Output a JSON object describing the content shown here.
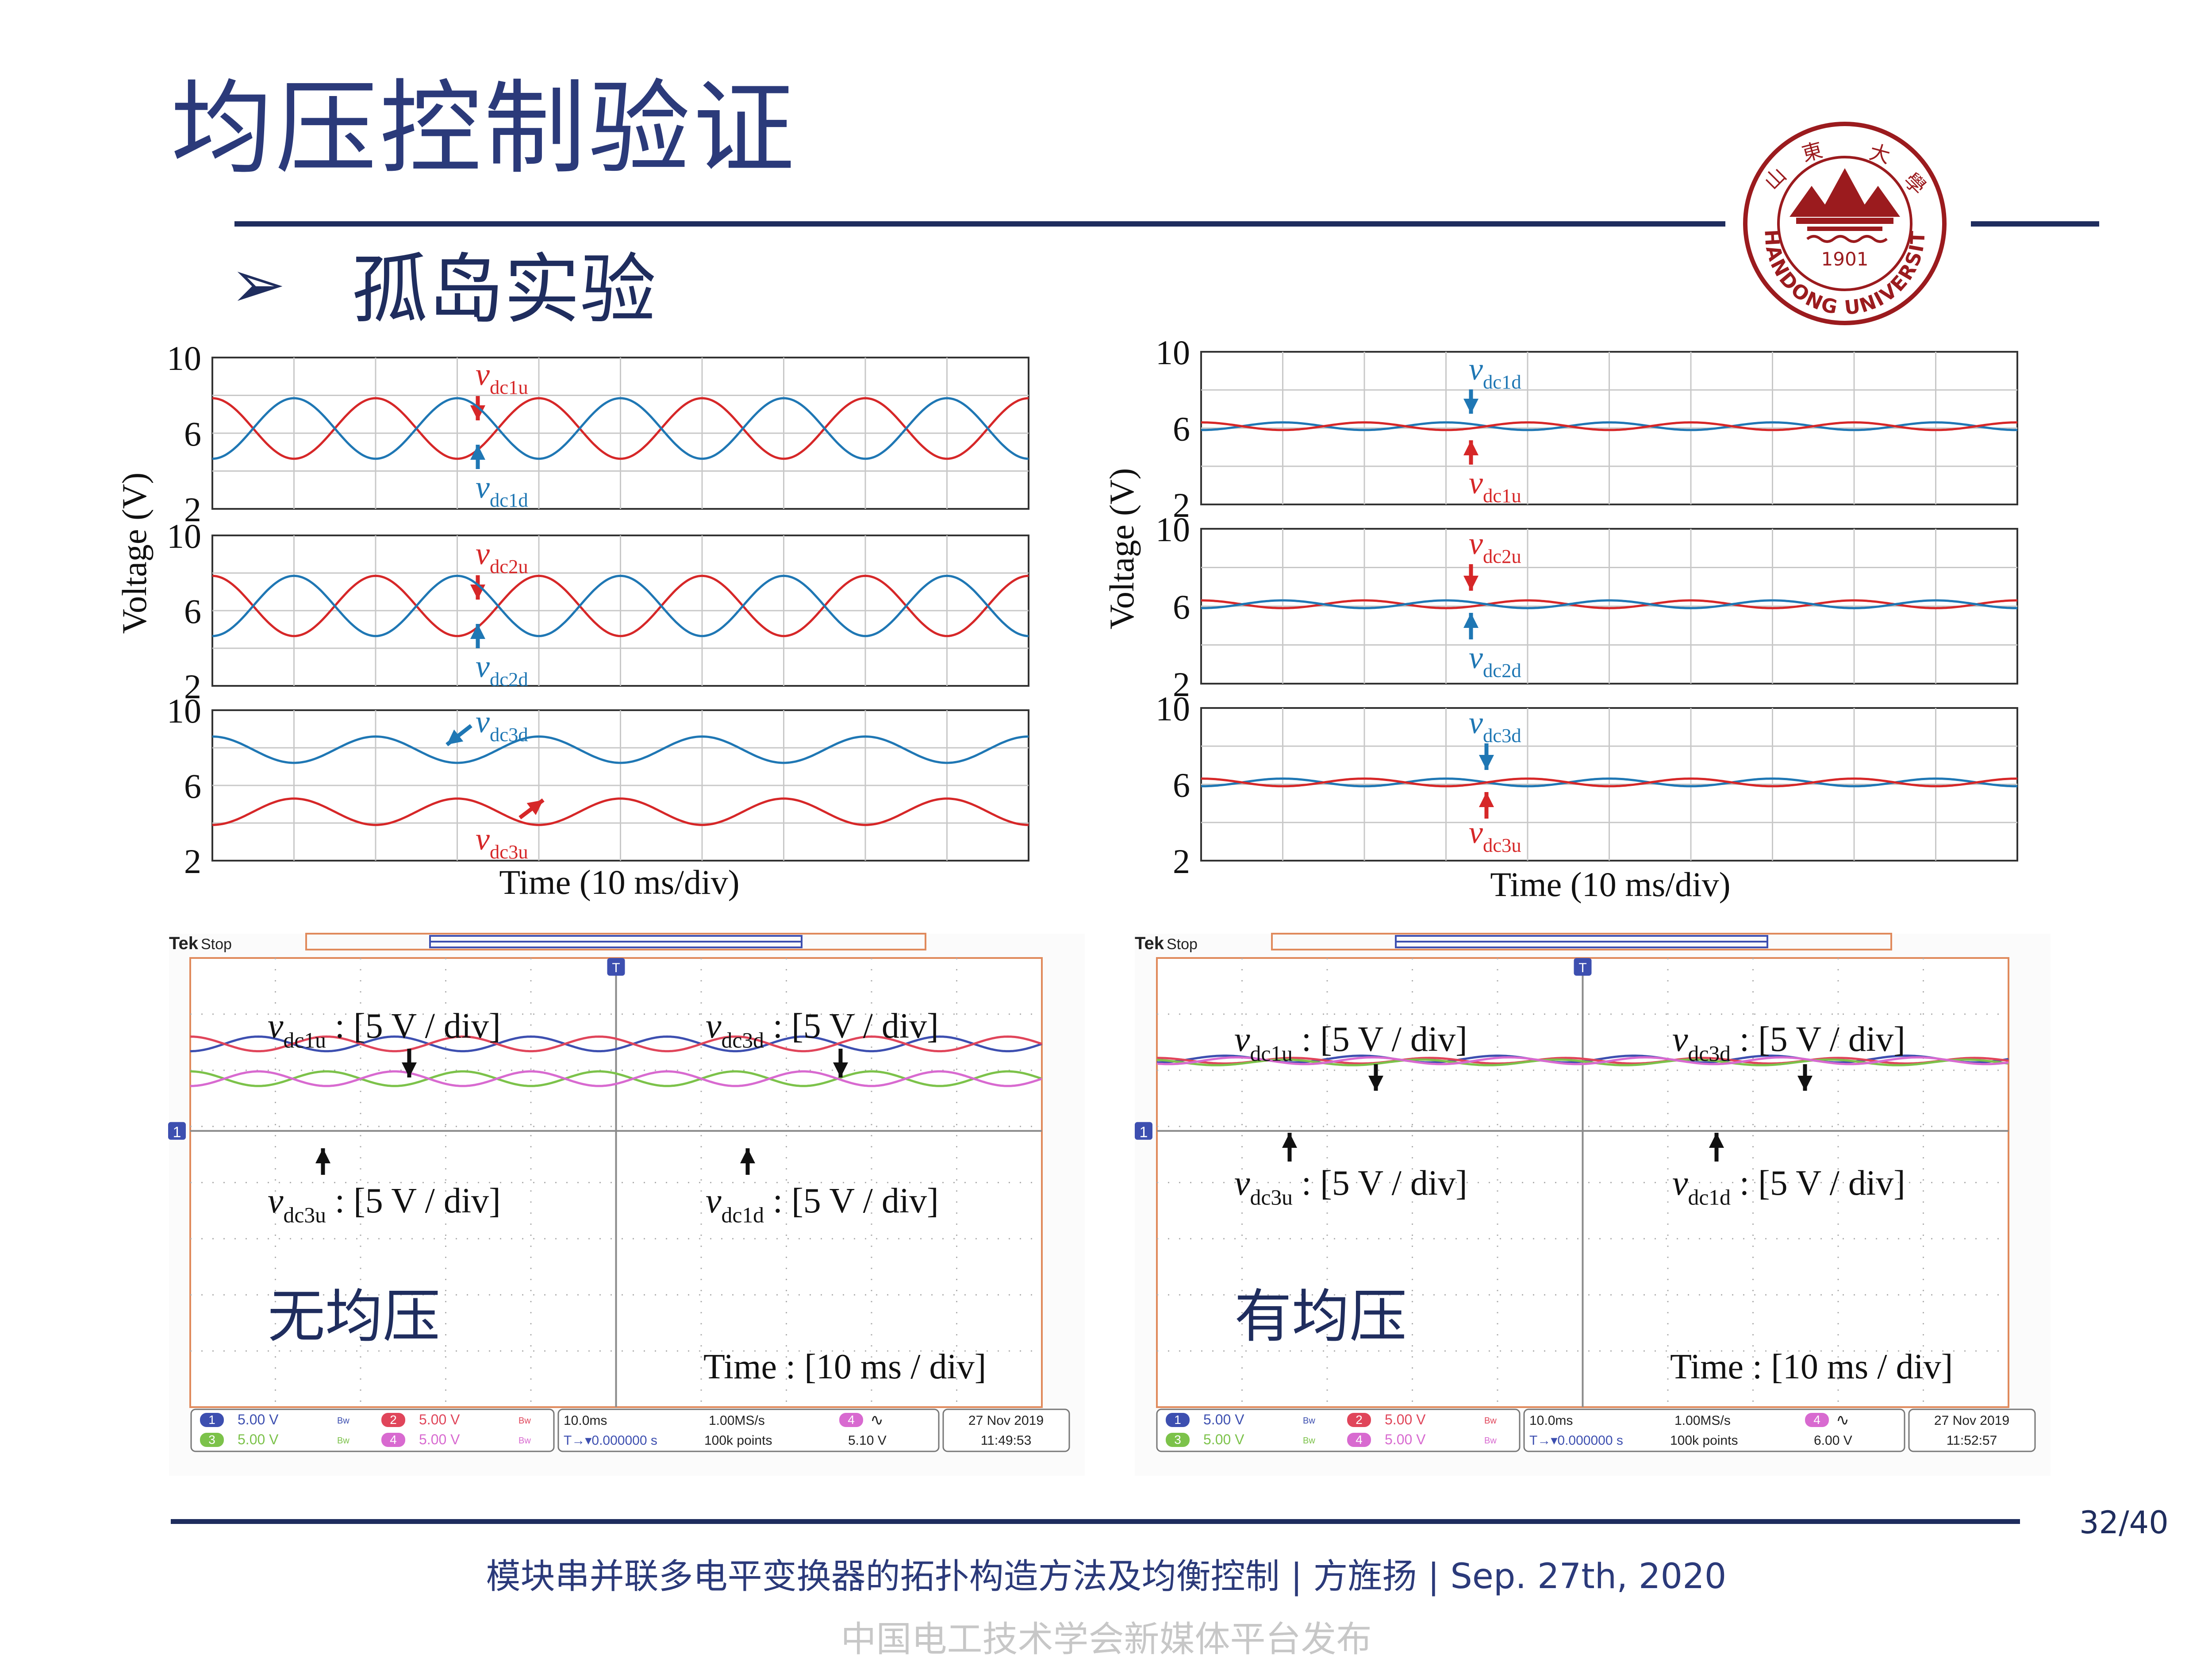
{
  "slide": {
    "title": "均压控制验证",
    "subtitle": "孤岛实验",
    "bullet": "➢",
    "page": "32/40",
    "footer": "模块串并联多电平变换器的拓扑构造方法及均衡控制 | 方旌扬 | Sep. 27th, 2020",
    "publish": "中国电工技术学会新媒体平台发布",
    "logo": {
      "year": "1901",
      "name": "SHANDONG UNIVERSITY",
      "calligraphy": "山东大学"
    },
    "colors": {
      "navy": "#1f2d5e",
      "red": "#d62728",
      "blue": "#1f77b4"
    }
  },
  "chart_data": [
    {
      "type": "line",
      "panel": "simulation-left",
      "ylabel": "Voltage (V)",
      "xlabel": "Time (10 ms/div)",
      "x_range_div": [
        0,
        10
      ],
      "rows": [
        {
          "ylim": [
            2,
            10
          ],
          "yticks": [
            "10",
            "6",
            "2"
          ],
          "series": [
            {
              "name": "vdc1u",
              "sym": "v",
              "sub": "dc1u",
              "color": "#d62728",
              "mean": 6.25,
              "amplitude": 1.6,
              "period_div": 2,
              "phase": 0
            },
            {
              "name": "vdc1d",
              "sym": "v",
              "sub": "dc1d",
              "color": "#1f77b4",
              "mean": 6.25,
              "amplitude": -1.6,
              "period_div": 2,
              "phase": 0
            }
          ]
        },
        {
          "ylim": [
            2,
            10
          ],
          "yticks": [
            "10",
            "6",
            "2"
          ],
          "series": [
            {
              "name": "vdc2u",
              "sym": "v",
              "sub": "dc2u",
              "color": "#d62728",
              "mean": 6.25,
              "amplitude": 1.6,
              "period_div": 2,
              "phase": 0
            },
            {
              "name": "vdc2d",
              "sym": "v",
              "sub": "dc2d",
              "color": "#1f77b4",
              "mean": 6.25,
              "amplitude": -1.6,
              "period_div": 2,
              "phase": 0
            }
          ]
        },
        {
          "ylim": [
            2,
            10
          ],
          "yticks": [
            "10",
            "6",
            "2"
          ],
          "series": [
            {
              "name": "vdc3d",
              "sym": "v",
              "sub": "dc3d",
              "color": "#1f77b4",
              "mean": 7.9,
              "amplitude": 0.7,
              "period_div": 2,
              "phase": 0
            },
            {
              "name": "vdc3u",
              "sym": "v",
              "sub": "dc3u",
              "color": "#d62728",
              "mean": 4.6,
              "amplitude": -0.7,
              "period_div": 2,
              "phase": 0
            }
          ]
        }
      ]
    },
    {
      "type": "line",
      "panel": "simulation-right",
      "ylabel": "Voltage (V)",
      "xlabel": "Time (10 ms/div)",
      "x_range_div": [
        0,
        10
      ],
      "rows": [
        {
          "ylim": [
            2,
            10
          ],
          "yticks": [
            "10",
            "6",
            "2"
          ],
          "series": [
            {
              "name": "vdc1d",
              "sym": "v",
              "sub": "dc1d",
              "color": "#1f77b4",
              "mean": 6.1,
              "amplitude": -0.2,
              "period_div": 2,
              "phase": 0
            },
            {
              "name": "vdc1u",
              "sym": "v",
              "sub": "dc1u",
              "color": "#d62728",
              "mean": 6.1,
              "amplitude": 0.2,
              "period_div": 2,
              "phase": 0
            }
          ]
        },
        {
          "ylim": [
            2,
            10
          ],
          "yticks": [
            "10",
            "6",
            "2"
          ],
          "series": [
            {
              "name": "vdc2u",
              "sym": "v",
              "sub": "dc2u",
              "color": "#d62728",
              "mean": 6.1,
              "amplitude": 0.2,
              "period_div": 2,
              "phase": 0
            },
            {
              "name": "vdc2d",
              "sym": "v",
              "sub": "dc2d",
              "color": "#1f77b4",
              "mean": 6.1,
              "amplitude": -0.2,
              "period_div": 2,
              "phase": 0
            }
          ]
        },
        {
          "ylim": [
            2,
            10
          ],
          "yticks": [
            "10",
            "6",
            "2"
          ],
          "series": [
            {
              "name": "vdc3d",
              "sym": "v",
              "sub": "dc3d",
              "color": "#1f77b4",
              "mean": 6.1,
              "amplitude": -0.2,
              "period_div": 2,
              "phase": 0
            },
            {
              "name": "vdc3u",
              "sym": "v",
              "sub": "dc3u",
              "color": "#d62728",
              "mean": 6.1,
              "amplitude": 0.2,
              "period_div": 2,
              "phase": 0
            }
          ]
        }
      ]
    },
    {
      "type": "line",
      "panel": "oscilloscope-left",
      "status": "Stop",
      "brand": "Tek",
      "caption": "无均压",
      "time_label": "Time : [10 ms / div]",
      "labels": [
        {
          "sym": "v",
          "sub": "dc1u",
          "text": " : [5 V / div]"
        },
        {
          "sym": "v",
          "sub": "dc3d",
          "text": " : [5 V / div]"
        },
        {
          "sym": "v",
          "sub": "dc3u",
          "text": " : [5 V / div]"
        },
        {
          "sym": "v",
          "sub": "dc1d",
          "text": " : [5 V / div]"
        }
      ],
      "traces": [
        {
          "ch": "1",
          "color": "#3d4fb0",
          "level_div": 1.55,
          "amplitude_div": 0.13,
          "period_div": 1.6,
          "phase": 3.14
        },
        {
          "ch": "2",
          "color": "#e0455a",
          "level_div": 1.55,
          "amplitude_div": 0.13,
          "period_div": 1.6,
          "phase": 0
        },
        {
          "ch": "3",
          "color": "#7cc24a",
          "level_div": 0.93,
          "amplitude_div": 0.13,
          "period_div": 1.6,
          "phase": 0
        },
        {
          "ch": "4",
          "color": "#d86ad0",
          "level_div": 0.93,
          "amplitude_div": 0.13,
          "period_div": 1.6,
          "phase": 3.14
        }
      ],
      "readouts": {
        "ch1": "5.00 V",
        "ch2": "5.00 V",
        "ch3": "5.00 V",
        "ch4": "5.00 V",
        "timebase": "10.0ms",
        "delay": "0.000000 s",
        "rate": "1.00MS/s",
        "points": "100k points",
        "trig_ch": "4",
        "trig_level": "5.10 V",
        "date": "27 Nov 2019",
        "time": "11:49:53"
      }
    },
    {
      "type": "line",
      "panel": "oscilloscope-right",
      "status": "Stop",
      "brand": "Tek",
      "caption": "有均压",
      "time_label": "Time : [10 ms / div]",
      "labels": [
        {
          "sym": "v",
          "sub": "dc1u",
          "text": " : [5 V / div]"
        },
        {
          "sym": "v",
          "sub": "dc3d",
          "text": " : [5 V / div]"
        },
        {
          "sym": "v",
          "sub": "dc3u",
          "text": " : [5 V / div]"
        },
        {
          "sym": "v",
          "sub": "dc1d",
          "text": " : [5 V / div]"
        }
      ],
      "traces": [
        {
          "ch": "1",
          "color": "#3d4fb0",
          "level_div": 1.28,
          "amplitude_div": 0.06,
          "period_div": 1.6,
          "phase": 3.14
        },
        {
          "ch": "2",
          "color": "#e0455a",
          "level_div": 1.25,
          "amplitude_div": 0.05,
          "period_div": 1.6,
          "phase": 0
        },
        {
          "ch": "3",
          "color": "#7cc24a",
          "level_div": 1.22,
          "amplitude_div": 0.05,
          "period_div": 1.6,
          "phase": 0.4
        },
        {
          "ch": "4",
          "color": "#d86ad0",
          "level_div": 1.25,
          "amplitude_div": 0.06,
          "period_div": 1.6,
          "phase": 2.6
        }
      ],
      "readouts": {
        "ch1": "5.00 V",
        "ch2": "5.00 V",
        "ch3": "5.00 V",
        "ch4": "5.00 V",
        "timebase": "10.0ms",
        "delay": "0.000000 s",
        "rate": "1.00MS/s",
        "points": "100k points",
        "trig_ch": "4",
        "trig_level": "6.00 V",
        "date": "27 Nov 2019",
        "time": "11:52:57"
      }
    }
  ]
}
